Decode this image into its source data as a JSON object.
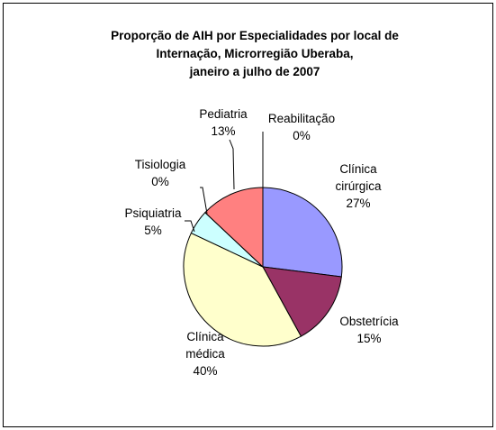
{
  "chart_data": {
    "type": "pie",
    "title": [
      "Proporção de AIH por Especialidades por local de",
      "Internação, Microrregião Uberaba,",
      "janeiro a julho de 2007"
    ],
    "categories": [
      "Clínica cirúrgica",
      "Obstetrícia",
      "Clínica médica",
      "Psiquiatria",
      "Tisiologia",
      "Pediatria",
      "Reabilitação"
    ],
    "values": [
      27,
      15,
      40,
      5,
      0,
      13,
      0
    ],
    "value_labels": [
      "27%",
      "15%",
      "40%",
      "5%",
      "0%",
      "13%",
      "0%"
    ],
    "colors": [
      "#9999ff",
      "#993366",
      "#ffffcc",
      "#ccffff",
      "#660066",
      "#ff8080",
      "#0066cc"
    ]
  }
}
